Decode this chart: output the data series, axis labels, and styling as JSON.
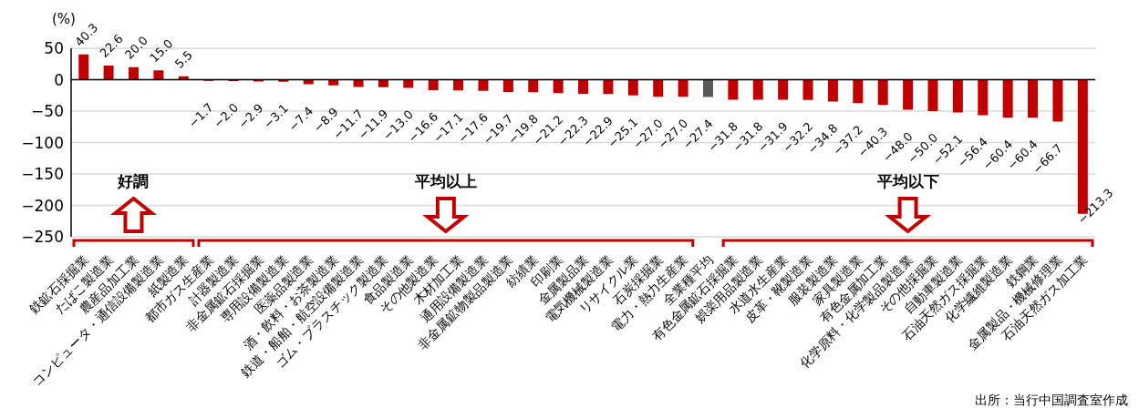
{
  "chart_data": {
    "type": "bar",
    "ylabel": "(%)",
    "categories": [
      "鉄鉱石採掘業",
      "たばこ製造業",
      "農産品加工業",
      "コンピュータ・通信設備製造業",
      "紙製造業",
      "都市ガス生産業",
      "計器製造業",
      "非金属鉱石採掘業",
      "専用設備製造業",
      "医薬品製造業",
      "酒・飲料・お茶製造業",
      "鉄道・船舶・航空設備製造業",
      "ゴム・プラスチック製造業",
      "食品製造業",
      "その他製造業",
      "木材加工業",
      "通用設備製造業",
      "非金属鉱物製品製造業",
      "紡績業",
      "印刷業",
      "金属製品業",
      "電気機械製造業",
      "リサイクル業",
      "石炭採掘業",
      "電力・熱力生産業",
      "全業種平均",
      "有色金属鉱石採掘業",
      "娯楽用品製造業",
      "水道水生産業",
      "皮革・靴製造業",
      "服装製造業",
      "家具製造業",
      "有色金属加工業",
      "化学原料・化学製品製造業",
      "その他採掘業",
      "自動車製造業",
      "石油天然ガス採掘業",
      "化学繊維製造業",
      "鉄鋼業",
      "金属製品・機械修理業",
      "石油天然ガス加工業"
    ],
    "values": [
      40.3,
      22.6,
      20.0,
      15.0,
      5.5,
      -1.7,
      -2.0,
      -2.9,
      -3.1,
      -7.4,
      -8.9,
      -11.7,
      -11.9,
      -13.0,
      -16.6,
      -17.1,
      -17.6,
      -19.7,
      -19.8,
      -21.2,
      -22.3,
      -22.9,
      -25.1,
      -27.0,
      -27.0,
      -27.4,
      -31.8,
      -31.8,
      -31.9,
      -32.2,
      -34.8,
      -37.2,
      -40.3,
      -48.0,
      -50.0,
      -52.1,
      -56.4,
      -60.4,
      -60.4,
      -66.7,
      -213.3
    ],
    "colors": [
      "#c00000",
      "#c00000",
      "#c00000",
      "#c00000",
      "#c00000",
      "#c00000",
      "#c00000",
      "#c00000",
      "#c00000",
      "#c00000",
      "#c00000",
      "#c00000",
      "#c00000",
      "#c00000",
      "#c00000",
      "#c00000",
      "#c00000",
      "#c00000",
      "#c00000",
      "#c00000",
      "#c00000",
      "#c00000",
      "#c00000",
      "#c00000",
      "#c00000",
      "#595959",
      "#c00000",
      "#c00000",
      "#c00000",
      "#c00000",
      "#c00000",
      "#c00000",
      "#c00000",
      "#c00000",
      "#c00000",
      "#c00000",
      "#c00000",
      "#c00000",
      "#c00000",
      "#c00000",
      "#c00000"
    ],
    "value_labels": [
      "40.3",
      "22.6",
      "20.0",
      "15.0",
      "5.5",
      "−1.7",
      "−2.0",
      "−2.9",
      "−3.1",
      "−7.4",
      "−8.9",
      "−11.7",
      "−11.9",
      "−13.0",
      "−16.6",
      "−17.1",
      "−17.6",
      "−19.7",
      "−19.8",
      "−21.2",
      "−22.3",
      "−22.9",
      "−25.1",
      "−27.0",
      "−27.0",
      "−27.4",
      "−31.8",
      "−31.8",
      "−31.9",
      "−32.2",
      "−34.8",
      "−37.2",
      "−40.3",
      "−48.0",
      "−50.0",
      "−52.1",
      "−56.4",
      "−60.4",
      "−60.4",
      "−66.7",
      "−213.3"
    ],
    "ylim": [
      -250,
      50
    ],
    "yticks": [
      -250,
      -200,
      -150,
      -100,
      -50,
      0,
      50
    ],
    "grid": "y",
    "annotations": [
      "好調",
      "平均以上",
      "平均以下",
      "出所：当行中国調査室作成"
    ]
  }
}
